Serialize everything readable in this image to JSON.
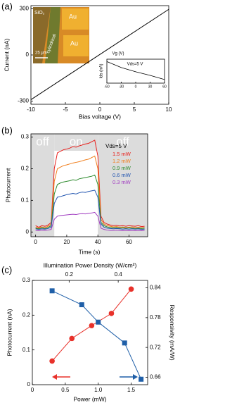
{
  "chart_data": [
    {
      "type": "line",
      "panel_label": "(a)",
      "xlabel": "Bias voltage (V)",
      "ylabel": "Current (nA)",
      "x": [
        -10,
        10
      ],
      "series": [
        {
          "color": "#000000",
          "values": [
            -290,
            296
          ]
        }
      ],
      "xlim": [
        -10,
        10
      ],
      "xticks": [
        -10,
        -5,
        0,
        5,
        10
      ],
      "ylim": [
        -320,
        320
      ],
      "yticks": [
        -300,
        0,
        300
      ],
      "annotations": [
        "SiO₂",
        "Au",
        "Au",
        "cylindrical",
        "25 μm"
      ]
    },
    {
      "type": "line",
      "xlabel": "Vg (V)",
      "ylabel": "Ids (nA)",
      "note": "Vds=5 V",
      "x": [
        -60,
        -30,
        0,
        30,
        60
      ],
      "series": [
        {
          "color": "#000000",
          "values": [
            1.02,
            0.82,
            0.68,
            0.56,
            0.42
          ]
        }
      ],
      "xlim": [
        -60,
        60
      ],
      "xticks": [
        -60,
        -30,
        0,
        30,
        60
      ],
      "ylim": [
        0.3,
        1.1
      ]
    },
    {
      "type": "line",
      "panel_label": "(b)",
      "xlabel": "Time (s)",
      "ylabel": "Photocurrent",
      "legend_title": "Vds=5 V",
      "regions": [
        {
          "label": "off",
          "range": [
            -3,
            12
          ],
          "shaded": true
        },
        {
          "label": "on",
          "range": [
            12,
            40
          ],
          "shaded": false
        },
        {
          "label": "off",
          "range": [
            40,
            72
          ],
          "shaded": true
        }
      ],
      "x": [
        0,
        2,
        4,
        6,
        8,
        10,
        12,
        14,
        16,
        18,
        20,
        22,
        24,
        26,
        28,
        30,
        32,
        34,
        36,
        38,
        40,
        42,
        44,
        46,
        48,
        50,
        52,
        54,
        56,
        58,
        60,
        62,
        64,
        66,
        68,
        70
      ],
      "series": [
        {
          "name": "1.5 mW",
          "color": "#e8201c",
          "values": [
            0.02,
            0.015,
            0.02,
            0.018,
            0.022,
            0.03,
            0.2,
            0.25,
            0.255,
            0.26,
            0.262,
            0.265,
            0.27,
            0.268,
            0.272,
            0.275,
            0.278,
            0.28,
            0.285,
            0.29,
            0.24,
            0.05,
            0.03,
            0.025,
            0.022,
            0.02,
            0.021,
            0.019,
            0.02,
            0.018,
            0.02,
            0.019,
            0.018,
            0.02,
            0.017,
            0.018
          ]
        },
        {
          "name": "1.2 mW",
          "color": "#f07d1a",
          "values": [
            0.015,
            0.012,
            0.016,
            0.014,
            0.018,
            0.025,
            0.16,
            0.2,
            0.205,
            0.21,
            0.212,
            0.215,
            0.218,
            0.22,
            0.222,
            0.225,
            0.228,
            0.23,
            0.235,
            0.24,
            0.2,
            0.04,
            0.025,
            0.02,
            0.018,
            0.016,
            0.017,
            0.015,
            0.016,
            0.014,
            0.015,
            0.016,
            0.014,
            0.015,
            0.013,
            0.014
          ]
        },
        {
          "name": "0.9 mW",
          "color": "#2e8b2e",
          "values": [
            0.012,
            0.01,
            0.013,
            0.011,
            0.014,
            0.02,
            0.12,
            0.15,
            0.155,
            0.158,
            0.16,
            0.162,
            0.165,
            0.163,
            0.168,
            0.17,
            0.172,
            0.174,
            0.176,
            0.18,
            0.15,
            0.03,
            0.02,
            0.016,
            0.014,
            0.013,
            0.014,
            0.012,
            0.013,
            0.012,
            0.013,
            0.012,
            0.011,
            0.012,
            0.011,
            0.012
          ]
        },
        {
          "name": "0.6 mW",
          "color": "#2255b0",
          "values": [
            0.01,
            0.008,
            0.01,
            0.009,
            0.011,
            0.015,
            0.09,
            0.11,
            0.112,
            0.115,
            0.118,
            0.12,
            0.122,
            0.12,
            0.124,
            0.126,
            0.125,
            0.128,
            0.13,
            0.132,
            0.11,
            0.025,
            0.015,
            0.012,
            0.011,
            0.01,
            0.011,
            0.01,
            0.009,
            0.01,
            0.009,
            0.01,
            0.009,
            0.01,
            0.008,
            0.009
          ]
        },
        {
          "name": "0.3 mW",
          "color": "#a03cc0",
          "values": [
            0.005,
            0.004,
            0.006,
            0.005,
            0.006,
            0.008,
            0.04,
            0.05,
            0.052,
            0.053,
            0.054,
            0.055,
            0.056,
            0.055,
            0.057,
            0.058,
            0.057,
            0.059,
            0.06,
            0.062,
            0.05,
            0.012,
            0.008,
            0.006,
            0.005,
            0.005,
            0.006,
            0.005,
            0.004,
            0.005,
            0.004,
            0.005,
            0.004,
            0.005,
            0.004,
            0.005
          ]
        }
      ],
      "xlim": [
        -3,
        72
      ],
      "xticks": [
        0,
        20,
        40,
        60
      ],
      "ylim": [
        -0.015,
        0.31
      ],
      "yticks": [
        0,
        0.1,
        0.2,
        0.3
      ]
    },
    {
      "type": "line",
      "panel_label": "(c)",
      "xlabel": "Power (mW)",
      "ylabel": "Photocurrent (nA)",
      "y2label": "Responsivity (mA/W)",
      "x2label": "Illumination Power Density (W/cm²)",
      "series": [
        {
          "color": "#e8312a",
          "marker": "circle",
          "x": [
            0.3,
            0.6,
            0.9,
            1.2,
            1.5
          ],
          "values": [
            0.068,
            0.133,
            0.17,
            0.205,
            0.275
          ]
        },
        {
          "color": "#1f5fa8",
          "marker": "square",
          "axis": "y2",
          "x": [
            0.3,
            0.75,
            1.0,
            1.4,
            1.65
          ],
          "values": [
            0.834,
            0.806,
            0.771,
            0.729,
            0.656
          ]
        }
      ],
      "xlim": [
        0,
        1.75
      ],
      "xticks": [
        0,
        0.5,
        {
          "value": 1,
          "label": "1.0"
        },
        1.5
      ],
      "x2lim": [
        0.05,
        0.52
      ],
      "x2ticks": [
        0.2,
        0.4
      ],
      "ylim": [
        0,
        0.3
      ],
      "yticks": [
        0,
        0.1,
        0.2,
        0.3
      ],
      "y2lim": [
        0.645,
        0.855
      ],
      "y2ticks": [
        0.66,
        0.72,
        0.78,
        0.84
      ]
    }
  ]
}
